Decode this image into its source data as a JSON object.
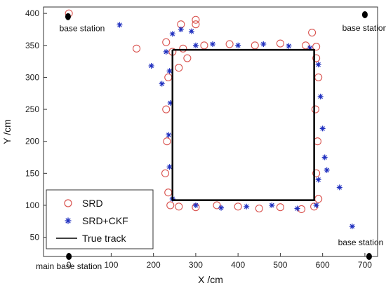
{
  "chart_data": {
    "type": "scatter",
    "xlabel": "X /cm",
    "ylabel": "Y /cm",
    "xlim": [
      -60,
      730
    ],
    "ylim": [
      20,
      410
    ],
    "xticks": [
      0,
      100,
      200,
      300,
      400,
      500,
      600,
      700
    ],
    "yticks": [
      50,
      100,
      150,
      200,
      250,
      300,
      350,
      400
    ],
    "grid": false,
    "legend_position": "bottom-left",
    "colors": {
      "srd": "#d9534f",
      "srd_ckf": "#1f2fbf",
      "true_track": "#000000",
      "station": "#000000"
    },
    "series": [
      {
        "name": "SRD",
        "marker": "circle",
        "points": [
          [
            0,
            400
          ],
          [
            160,
            345
          ],
          [
            265,
            383
          ],
          [
            300,
            390
          ],
          [
            300,
            383
          ],
          [
            575,
            370
          ],
          [
            230,
            355
          ],
          [
            245,
            340
          ],
          [
            270,
            345
          ],
          [
            320,
            350
          ],
          [
            380,
            352
          ],
          [
            440,
            350
          ],
          [
            500,
            353
          ],
          [
            560,
            350
          ],
          [
            585,
            348
          ],
          [
            235,
            300
          ],
          [
            230,
            250
          ],
          [
            232,
            200
          ],
          [
            228,
            150
          ],
          [
            235,
            120
          ],
          [
            240,
            100
          ],
          [
            260,
            98
          ],
          [
            300,
            97
          ],
          [
            350,
            100
          ],
          [
            400,
            98
          ],
          [
            450,
            95
          ],
          [
            500,
            97
          ],
          [
            550,
            94
          ],
          [
            580,
            98
          ],
          [
            590,
            110
          ],
          [
            585,
            150
          ],
          [
            588,
            200
          ],
          [
            583,
            250
          ],
          [
            590,
            300
          ],
          [
            585,
            330
          ],
          [
            280,
            330
          ],
          [
            260,
            315
          ]
        ]
      },
      {
        "name": "SRD+CKF",
        "marker": "star",
        "points": [
          [
            120,
            382
          ],
          [
            195,
            318
          ],
          [
            245,
            368
          ],
          [
            265,
            375
          ],
          [
            290,
            372
          ],
          [
            300,
            350
          ],
          [
            340,
            352
          ],
          [
            400,
            350
          ],
          [
            460,
            352
          ],
          [
            520,
            349
          ],
          [
            570,
            346
          ],
          [
            590,
            320
          ],
          [
            595,
            270
          ],
          [
            600,
            220
          ],
          [
            605,
            175
          ],
          [
            610,
            155
          ],
          [
            640,
            128
          ],
          [
            670,
            67
          ],
          [
            590,
            140
          ],
          [
            585,
            100
          ],
          [
            540,
            95
          ],
          [
            480,
            100
          ],
          [
            420,
            98
          ],
          [
            360,
            96
          ],
          [
            300,
            100
          ],
          [
            245,
            110
          ],
          [
            238,
            160
          ],
          [
            236,
            210
          ],
          [
            240,
            260
          ],
          [
            238,
            310
          ],
          [
            220,
            290
          ],
          [
            230,
            340
          ]
        ]
      },
      {
        "name": "True track",
        "marker": "line",
        "points": [
          [
            245,
            343
          ],
          [
            580,
            343
          ],
          [
            580,
            108
          ],
          [
            245,
            108
          ],
          [
            245,
            343
          ]
        ]
      }
    ],
    "stations": [
      {
        "label": "base station",
        "x": -2,
        "y": 395
      },
      {
        "label": "base station",
        "x": 700,
        "y": 398
      },
      {
        "label": "base station",
        "x": 710,
        "y": 20
      },
      {
        "label": "main base station",
        "x": 0,
        "y": 20
      }
    ]
  }
}
